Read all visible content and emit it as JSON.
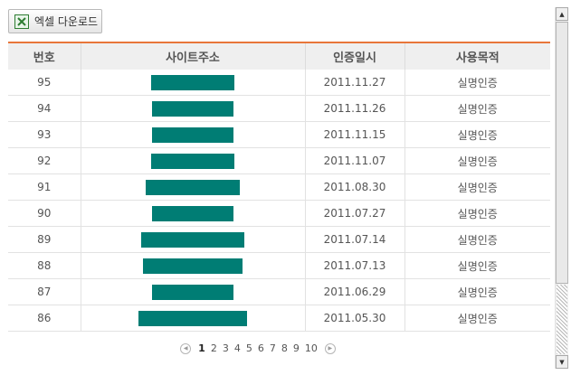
{
  "toolbar": {
    "excel_label": "엑셀 다운로드"
  },
  "table": {
    "headers": [
      "번호",
      "사이트주소",
      "인증일시",
      "사용목적"
    ],
    "redaction_color": "#007d74",
    "rows": [
      {
        "no": "95",
        "date": "2011.11.27",
        "purpose": "실명인증",
        "redacted_width_ratio": 0.37
      },
      {
        "no": "94",
        "date": "2011.11.26",
        "purpose": "실명인증",
        "redacted_width_ratio": 0.36
      },
      {
        "no": "93",
        "date": "2011.11.15",
        "purpose": "실명인증",
        "redacted_width_ratio": 0.36
      },
      {
        "no": "92",
        "date": "2011.11.07",
        "purpose": "실명인증",
        "redacted_width_ratio": 0.37
      },
      {
        "no": "91",
        "date": "2011.08.30",
        "purpose": "실명인증",
        "redacted_width_ratio": 0.42
      },
      {
        "no": "90",
        "date": "2011.07.27",
        "purpose": "실명인증",
        "redacted_width_ratio": 0.36
      },
      {
        "no": "89",
        "date": "2011.07.14",
        "purpose": "실명인증",
        "redacted_width_ratio": 0.46
      },
      {
        "no": "88",
        "date": "2011.07.13",
        "purpose": "실명인증",
        "redacted_width_ratio": 0.44
      },
      {
        "no": "87",
        "date": "2011.06.29",
        "purpose": "실명인증",
        "redacted_width_ratio": 0.36
      },
      {
        "no": "86",
        "date": "2011.05.30",
        "purpose": "실명인증",
        "redacted_width_ratio": 0.48
      }
    ]
  },
  "pagination": {
    "pages": [
      "1",
      "2",
      "3",
      "4",
      "5",
      "6",
      "7",
      "8",
      "9",
      "10"
    ],
    "current": "1",
    "prev_icon": "prev-arrow-icon",
    "next_icon": "next-arrow-icon"
  },
  "scrollbar": {
    "up_icon": "scroll-up-icon",
    "down_icon": "scroll-down-icon"
  },
  "accent_color": "#e8763a"
}
